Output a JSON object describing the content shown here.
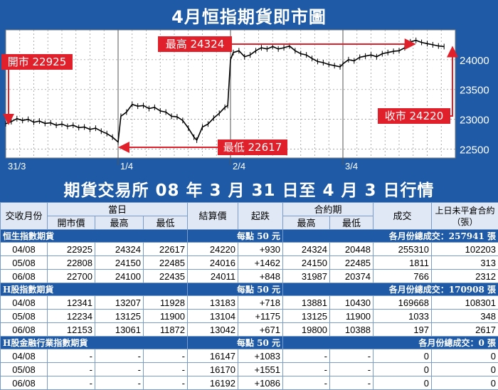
{
  "chart_data": {
    "type": "line",
    "title": "4月恒指期貨即市圖",
    "y_ticks": [
      22500,
      23000,
      23500,
      24000
    ],
    "ylim": [
      22350,
      24500
    ],
    "x_tick_labels": [
      "31/3",
      "1/4",
      "2/4",
      "3/4"
    ],
    "series": [
      {
        "points": [
          [
            0,
            22925
          ],
          [
            2,
            22960
          ],
          [
            4,
            23010
          ],
          [
            6,
            22980
          ],
          [
            8,
            23000
          ],
          [
            10,
            22950
          ],
          [
            12,
            22970
          ],
          [
            14,
            22930
          ],
          [
            16,
            22940
          ],
          [
            18,
            22900
          ],
          [
            20,
            22920
          ],
          [
            22,
            22880
          ],
          [
            24,
            22900
          ],
          [
            26,
            22860
          ],
          [
            28,
            22870
          ],
          [
            30,
            22830
          ],
          [
            32,
            22850
          ],
          [
            34,
            22800
          ],
          [
            36,
            22760
          ],
          [
            38,
            22700
          ],
          [
            40,
            22617
          ],
          [
            41,
            23050
          ],
          [
            43,
            23120
          ],
          [
            45,
            23250
          ],
          [
            47,
            23220
          ],
          [
            49,
            23230
          ],
          [
            51,
            23180
          ],
          [
            53,
            23200
          ],
          [
            55,
            23140
          ],
          [
            57,
            23120
          ],
          [
            59,
            23050
          ],
          [
            61,
            23040
          ],
          [
            63,
            22980
          ],
          [
            65,
            22850
          ],
          [
            67,
            22700
          ],
          [
            68,
            22650
          ],
          [
            70,
            22870
          ],
          [
            72,
            22920
          ],
          [
            74,
            23020
          ],
          [
            76,
            23100
          ],
          [
            78,
            23200
          ],
          [
            79,
            23230
          ],
          [
            80,
            24000
          ],
          [
            81,
            24120
          ],
          [
            83,
            24150
          ],
          [
            85,
            24050
          ],
          [
            87,
            24080
          ],
          [
            89,
            24150
          ],
          [
            91,
            24200
          ],
          [
            93,
            24180
          ],
          [
            95,
            24220
          ],
          [
            97,
            24180
          ],
          [
            99,
            24200
          ],
          [
            101,
            24230
          ],
          [
            103,
            24150
          ],
          [
            105,
            24100
          ],
          [
            107,
            24080
          ],
          [
            109,
            24020
          ],
          [
            111,
            23970
          ],
          [
            113,
            23950
          ],
          [
            115,
            23920
          ],
          [
            117,
            23900
          ],
          [
            119,
            23880
          ],
          [
            120,
            23930
          ],
          [
            122,
            24000
          ],
          [
            124,
            23980
          ],
          [
            126,
            24040
          ],
          [
            128,
            24060
          ],
          [
            130,
            24080
          ],
          [
            132,
            24050
          ],
          [
            134,
            24100
          ],
          [
            136,
            24120
          ],
          [
            138,
            24140
          ],
          [
            140,
            24150
          ],
          [
            142,
            24200
          ],
          [
            144,
            24300
          ],
          [
            146,
            24324
          ],
          [
            148,
            24290
          ],
          [
            150,
            24270
          ],
          [
            152,
            24250
          ],
          [
            154,
            24230
          ],
          [
            156,
            24220
          ]
        ]
      }
    ],
    "annotations": [
      {
        "text": "開市 22925"
      },
      {
        "text": "最高 24324"
      },
      {
        "text": "最低 22617"
      },
      {
        "text": "收市 24220"
      }
    ]
  },
  "table": {
    "title": "期貨交易所 08 年 3 月 31 日至 4 月 3 日行情",
    "headers": {
      "month": "交收月份",
      "day": "當日",
      "open": "開市價",
      "high": "最高",
      "low": "最低",
      "settle": "結算價",
      "change": "起跌",
      "contract": "合約期",
      "c_high": "最高",
      "c_low": "最低",
      "volume": "成交",
      "oi": "上日未平倉合約（張）"
    },
    "sections": [
      {
        "name": "恒生指數期貨",
        "unit": "每點 50 元",
        "total": "各月份總成交：257941 張",
        "rows": [
          [
            "04/08",
            "22925",
            "24324",
            "22617",
            "24220",
            "+930",
            "24324",
            "20448",
            "255310",
            "102203"
          ],
          [
            "05/08",
            "22808",
            "24150",
            "22485",
            "24016",
            "+1462",
            "24150",
            "22485",
            "1811",
            "313"
          ],
          [
            "06/08",
            "22700",
            "24100",
            "22435",
            "24011",
            "+848",
            "31987",
            "20374",
            "766",
            "2312"
          ]
        ]
      },
      {
        "name": "H股指數期貨",
        "unit": "每點 50 元",
        "total": "各月份總成交：170908 張",
        "rows": [
          [
            "04/08",
            "12341",
            "13207",
            "11928",
            "13183",
            "+718",
            "13881",
            "10430",
            "169668",
            "108301"
          ],
          [
            "05/08",
            "12234",
            "13125",
            "11900",
            "13104",
            "+1175",
            "13125",
            "11900",
            "1033",
            "348"
          ],
          [
            "06/08",
            "12153",
            "13061",
            "11872",
            "13042",
            "+671",
            "19800",
            "10388",
            "197",
            "2617"
          ]
        ]
      },
      {
        "name": "H股金融行業指數期貨",
        "unit": "每點 50 元",
        "total": "各月份總成交：0 張",
        "rows": [
          [
            "04/08",
            "-",
            "-",
            "-",
            "16147",
            "+1083",
            "-",
            "-",
            "0",
            "0"
          ],
          [
            "05/08",
            "-",
            "-",
            "-",
            "16170",
            "+1551",
            "-",
            "-",
            "0",
            "0"
          ],
          [
            "06/08",
            "-",
            "-",
            "-",
            "16192",
            "+1086",
            "-",
            "-",
            "0",
            "0"
          ]
        ]
      }
    ]
  },
  "colors": {
    "panel_blue": "#1f5aa6",
    "annotation_red": "#e0202a",
    "header_bg": "#dfe8f4",
    "plot_bg": "#ffffff",
    "line_black": "#000000"
  }
}
